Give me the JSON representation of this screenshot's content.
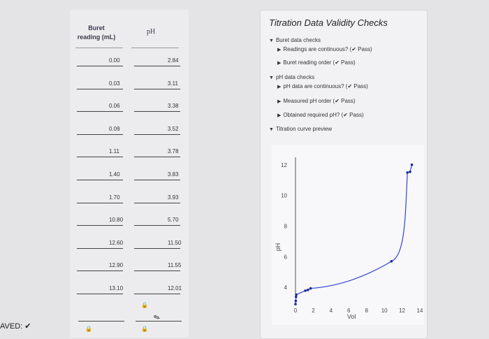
{
  "status": {
    "saved_label": "AVED:",
    "saved_check": "✔"
  },
  "table": {
    "header_buret": [
      "Buret",
      "reading (mL)"
    ],
    "header_ph": "pH",
    "rows": [
      {
        "buret": "0.00",
        "ph": "2.84"
      },
      {
        "buret": "0.03",
        "ph": "3.11"
      },
      {
        "buret": "0.06",
        "ph": "3.38"
      },
      {
        "buret": "0.09",
        "ph": "3.52"
      },
      {
        "buret": "1.11",
        "ph": "3.78"
      },
      {
        "buret": "1.40",
        "ph": "3.83"
      },
      {
        "buret": "1.70",
        "ph": "3.93"
      },
      {
        "buret": "10.80",
        "ph": "5.70"
      },
      {
        "buret": "12.60",
        "ph": "11.50"
      },
      {
        "buret": "12.90",
        "ph": "11.55"
      },
      {
        "buret": "13.10",
        "ph": "12.01"
      }
    ]
  },
  "checks": {
    "title": "Titration Data Validity Checks",
    "buret_group": "Buret data checks",
    "buret_items": [
      {
        "text": "Readings are continuous? (",
        "check": "✔",
        "result": "Pass)"
      },
      {
        "text": "Buret reading order (",
        "check": "✔",
        "result": "Pass)"
      }
    ],
    "ph_group": "pH data checks",
    "ph_items": [
      {
        "text": "pH data are continuous? (",
        "check": "✔",
        "result": "Pass)"
      },
      {
        "text": "Measured pH order (",
        "check": "✔",
        "result": "Pass)"
      },
      {
        "text": "Obtained required pH? (",
        "check": "✔",
        "result": "Pass)"
      }
    ],
    "preview_label": "Titration curve preview"
  },
  "chart_data": {
    "type": "line",
    "xlabel": "Vol",
    "ylabel": "pH",
    "xlim": [
      0,
      14
    ],
    "ylim": [
      3.5,
      12.5
    ],
    "x_ticks": [
      0,
      2,
      4,
      6,
      8,
      10,
      12,
      14
    ],
    "y_ticks": [
      4,
      6,
      8,
      10,
      12
    ],
    "line_color": "#3344cc",
    "point_color": "#1a2a99",
    "points": [
      {
        "x": 0.0,
        "y": 2.84
      },
      {
        "x": 0.03,
        "y": 3.11
      },
      {
        "x": 0.06,
        "y": 3.38
      },
      {
        "x": 0.09,
        "y": 3.52
      },
      {
        "x": 1.11,
        "y": 3.78
      },
      {
        "x": 1.4,
        "y": 3.83
      },
      {
        "x": 1.7,
        "y": 3.93
      },
      {
        "x": 10.8,
        "y": 5.7
      },
      {
        "x": 12.6,
        "y": 11.5
      },
      {
        "x": 12.9,
        "y": 11.55
      },
      {
        "x": 13.1,
        "y": 12.01
      }
    ]
  }
}
